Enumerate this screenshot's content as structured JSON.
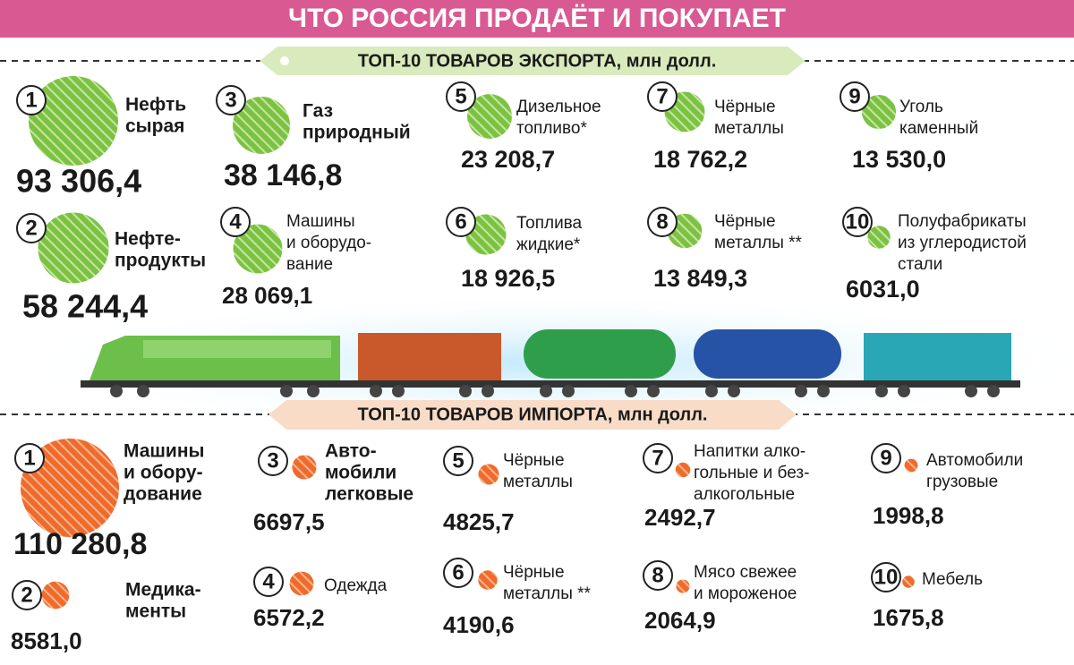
{
  "title": "ЧТО РОССИЯ ПРОДАЁТ И ПОКУПАЕТ",
  "export": {
    "header": "ТОП-10 ТОВАРОВ ЭКСПОРТА, млн долл.",
    "items": [
      {
        "rank": 1,
        "label": [
          "Нефть",
          "сырая"
        ],
        "value": "93 306,4"
      },
      {
        "rank": 2,
        "label": [
          "Нефте-",
          "продукты"
        ],
        "value": "58 244,4"
      },
      {
        "rank": 3,
        "label": [
          "Газ",
          "природный"
        ],
        "value": "38 146,8"
      },
      {
        "rank": 4,
        "label": [
          "Машины",
          "и оборудо-",
          "вание"
        ],
        "value": "28 069,1"
      },
      {
        "rank": 5,
        "label": [
          "Дизельное",
          "топливо*"
        ],
        "value": "23 208,7"
      },
      {
        "rank": 6,
        "label": [
          "Топлива",
          "жидкие*"
        ],
        "value": "18 926,5"
      },
      {
        "rank": 7,
        "label": [
          "Чёрные",
          "металлы"
        ],
        "value": "18 762,2"
      },
      {
        "rank": 8,
        "label": [
          "Чёрные",
          "металлы **"
        ],
        "value": "13 849,3"
      },
      {
        "rank": 9,
        "label": [
          "Уголь",
          "каменный"
        ],
        "value": "13 530,0"
      },
      {
        "rank": 10,
        "label": [
          "Полуфабрикаты",
          "из углеродистой",
          "стали"
        ],
        "value": "6031,0"
      }
    ]
  },
  "import": {
    "header": "ТОП-10 ТОВАРОВ ИМПОРТА, млн долл.",
    "items": [
      {
        "rank": 1,
        "label": [
          "Машины",
          "и обору-",
          "дование"
        ],
        "value": "110 280,8"
      },
      {
        "rank": 2,
        "label": [
          "Медика-",
          "менты"
        ],
        "value": "8581,0"
      },
      {
        "rank": 3,
        "label": [
          "Авто-",
          "мобили",
          "легковые"
        ],
        "value": "6697,5"
      },
      {
        "rank": 4,
        "label": [
          "Одежда"
        ],
        "value": "6572,2"
      },
      {
        "rank": 5,
        "label": [
          "Чёрные",
          "металлы"
        ],
        "value": "4825,7"
      },
      {
        "rank": 6,
        "label": [
          "Чёрные",
          "металлы **"
        ],
        "value": "4190,6"
      },
      {
        "rank": 7,
        "label": [
          "Напитки алко-",
          "гольные и без-",
          "алкогольные"
        ],
        "value": "2492,7"
      },
      {
        "rank": 8,
        "label": [
          "Мясо свежее",
          "и мороженое"
        ],
        "value": "2064,9"
      },
      {
        "rank": 9,
        "label": [
          "Автомобили",
          "грузовые"
        ],
        "value": "1998,8"
      },
      {
        "rank": 10,
        "label": [
          "Мебель"
        ],
        "value": "1675,8"
      }
    ]
  }
}
